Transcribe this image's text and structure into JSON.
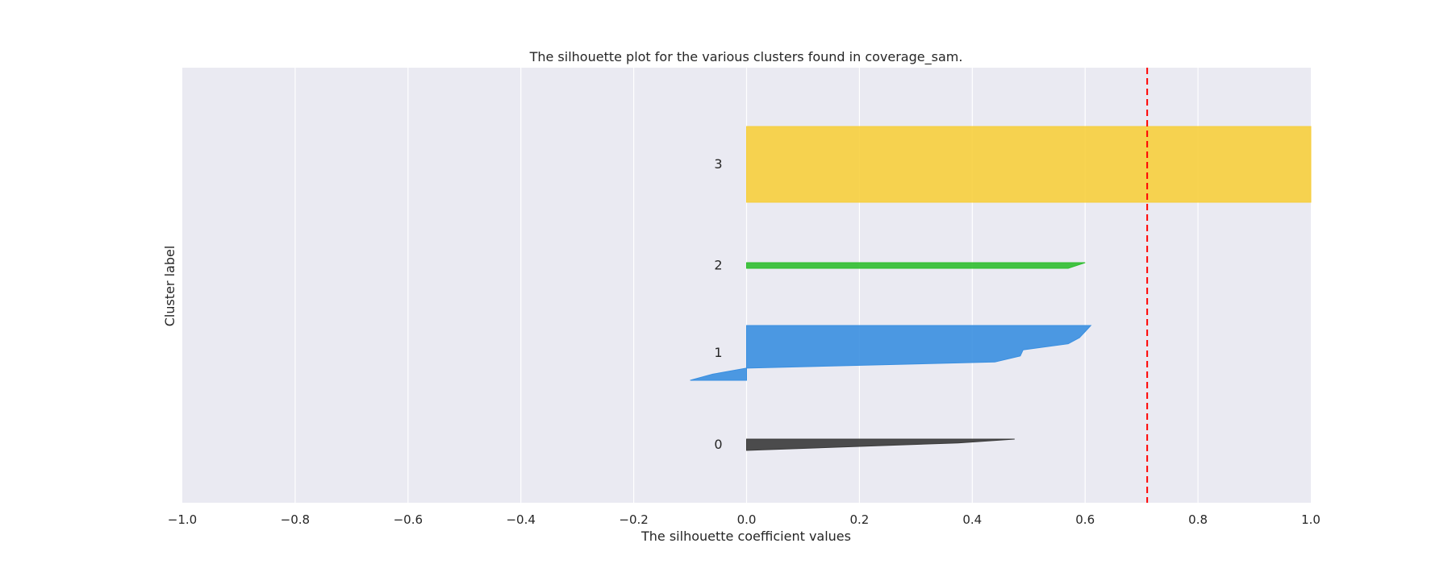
{
  "chart_data": {
    "type": "area",
    "title": "The silhouette plot for the various clusters found in coverage_sam.",
    "xlabel": "The silhouette coefficient values",
    "ylabel": "Cluster label",
    "xlim": [
      -1.0,
      1.0
    ],
    "xticks": [
      "−1.0",
      "−0.8",
      "−0.6",
      "−0.4",
      "−0.2",
      "0.0",
      "0.2",
      "0.4",
      "0.6",
      "0.8",
      "1.0"
    ],
    "grid": true,
    "average_silhouette_score": 0.71,
    "background_color": "#eaeaf2",
    "reference_line_color": "#ff0000",
    "clusters": [
      {
        "label": "0",
        "color": "#3a3a3a",
        "silhouette_values": [
          0.475,
          0.375,
          0.19,
          0.0
        ]
      },
      {
        "label": "1",
        "color": "#3a8fe0",
        "silhouette_values": [
          0.61,
          0.6,
          0.59,
          0.57,
          0.49,
          0.485,
          0.44,
          0.0,
          -0.06,
          -0.1
        ]
      },
      {
        "label": "2",
        "color": "#2fbe2f",
        "silhouette_values": [
          0.6,
          0.57
        ]
      },
      {
        "label": "3",
        "color": "#f7cf3d",
        "silhouette_values": [
          1.0,
          1.0
        ]
      }
    ]
  }
}
